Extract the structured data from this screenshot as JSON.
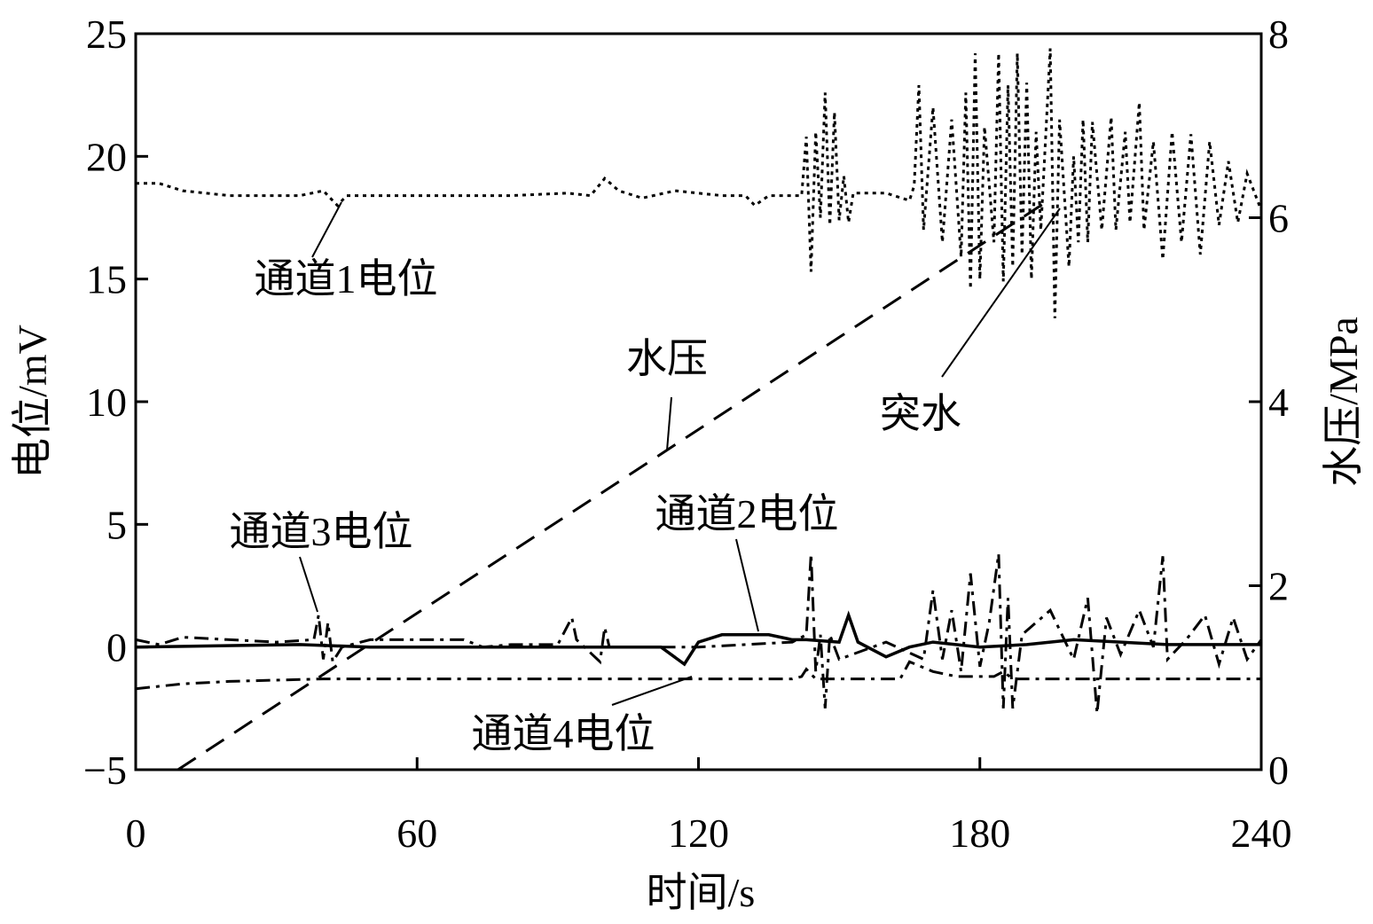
{
  "chart_data": {
    "type": "line",
    "xlabel": "时间/s",
    "ylabel": "电位/mV",
    "y2label": "水压/MPa",
    "xlim": [
      0,
      240
    ],
    "xticks": [
      0,
      60,
      120,
      180,
      240
    ],
    "ylim": [
      -5,
      25
    ],
    "yticks": [
      {
        "value": -5,
        "label": "−5"
      },
      0,
      5,
      10,
      15,
      20,
      25
    ],
    "y2lim": [
      0,
      8
    ],
    "y2ticks": [
      0,
      2,
      4,
      6,
      8
    ],
    "annotations": [
      {
        "text": "突水"
      }
    ],
    "series": [
      {
        "name": "通道1电位",
        "color": "#000000",
        "style": "dotted",
        "x": [
          0,
          5,
          10,
          20,
          35,
          40,
          43,
          45,
          60,
          80,
          92,
          97,
          100,
          103,
          108,
          115,
          125,
          130,
          132,
          135,
          142,
          143,
          144,
          145,
          146,
          147,
          148,
          149,
          150,
          151,
          152,
          153,
          160,
          165,
          166,
          167,
          168,
          170,
          172,
          174,
          176,
          177,
          178,
          179,
          180,
          181,
          183,
          184,
          185,
          186,
          187,
          188,
          189,
          190,
          191,
          192,
          193,
          195,
          196,
          197,
          199,
          200,
          201,
          202,
          203,
          204,
          206,
          208,
          209,
          211,
          212,
          214,
          215,
          217,
          219,
          221,
          223,
          225,
          227,
          229,
          231,
          233,
          235,
          237,
          240
        ],
        "values": [
          18.9,
          18.9,
          18.6,
          18.4,
          18.4,
          18.6,
          18.0,
          18.4,
          18.4,
          18.4,
          18.5,
          18.4,
          19.1,
          18.6,
          18.3,
          18.6,
          18.4,
          18.4,
          18.0,
          18.4,
          18.4,
          20.8,
          15.3,
          21.0,
          17.5,
          22.6,
          17.2,
          21.8,
          17.4,
          19.2,
          17.3,
          18.5,
          18.5,
          18.2,
          18.8,
          22.9,
          17.0,
          22.0,
          16.5,
          21.5,
          15.9,
          22.6,
          14.6,
          24.2,
          15.0,
          21.2,
          16.5,
          24.2,
          14.9,
          22.9,
          15.5,
          24.2,
          16.0,
          23.0,
          15.0,
          21.0,
          17.0,
          24.4,
          13.4,
          21.5,
          15.5,
          20.0,
          16.5,
          21.5,
          16.5,
          21.4,
          17.0,
          21.6,
          17.0,
          21.0,
          17.3,
          22.2,
          17.0,
          20.6,
          15.8,
          21.0,
          16.5,
          20.9,
          16.0,
          20.6,
          17.2,
          19.8,
          17.3,
          19.3,
          17.8
        ]
      },
      {
        "name": "通道2电位",
        "color": "#000000",
        "style": "solid",
        "x": [
          0,
          35,
          50,
          100,
          112,
          117,
          120,
          125,
          135,
          140,
          143,
          150,
          152,
          154,
          160,
          165,
          170,
          180,
          190,
          200,
          220,
          240
        ],
        "values": [
          0.0,
          0.1,
          0.0,
          0.0,
          0.0,
          -0.7,
          0.2,
          0.5,
          0.5,
          0.3,
          0.3,
          0.2,
          1.3,
          0.2,
          -0.4,
          0.0,
          0.2,
          0.0,
          0.1,
          0.3,
          0.1,
          0.1
        ]
      },
      {
        "name": "通道3电位",
        "color": "#000000",
        "style": "dashdot",
        "x": [
          0,
          5,
          10,
          20,
          30,
          38,
          39,
          40,
          41,
          42,
          44,
          50,
          70,
          74,
          80,
          90,
          93,
          94,
          99,
          100,
          101,
          120,
          140,
          143,
          144,
          145,
          146,
          147,
          148,
          150,
          160,
          168,
          170,
          172,
          174,
          176,
          178,
          180,
          182,
          184,
          185,
          186,
          187,
          189,
          195,
          200,
          203,
          205,
          207,
          210,
          214,
          217,
          219,
          220,
          224,
          228,
          231,
          234,
          237,
          240
        ],
        "values": [
          0.3,
          0.1,
          0.4,
          0.3,
          0.2,
          0.3,
          1.3,
          -0.5,
          1.0,
          -0.6,
          0.0,
          0.3,
          0.3,
          0.0,
          0.1,
          0.1,
          1.2,
          0.3,
          -0.6,
          0.8,
          0.0,
          0.0,
          0.2,
          0.5,
          3.8,
          -1.0,
          0.5,
          -2.5,
          0.5,
          -0.5,
          0.2,
          -0.5,
          2.3,
          -0.5,
          1.5,
          -1.0,
          3.0,
          -0.8,
          1.0,
          3.8,
          -2.5,
          2.0,
          -2.5,
          0.5,
          1.5,
          -0.5,
          2.0,
          -2.7,
          1.2,
          -0.3,
          1.5,
          0.0,
          3.7,
          -0.5,
          0.3,
          1.3,
          -0.7,
          1.2,
          -0.5,
          0.3
        ]
      },
      {
        "name": "通道4电位",
        "color": "#000000",
        "style": "dashdot",
        "x": [
          0,
          10,
          20,
          40,
          60,
          80,
          100,
          120,
          140,
          142,
          143,
          145,
          163,
          165,
          170,
          175,
          183,
          185,
          187,
          240
        ],
        "values": [
          -1.7,
          -1.5,
          -1.4,
          -1.3,
          -1.3,
          -1.3,
          -1.3,
          -1.3,
          -1.3,
          -1.2,
          -0.9,
          -1.3,
          -1.3,
          -0.6,
          -1.0,
          -1.2,
          -1.2,
          -1.0,
          -1.3,
          -1.3
        ]
      },
      {
        "name": "水压",
        "color": "#000000",
        "style": "dashed",
        "axis": "y2",
        "x": [
          9,
          50,
          100,
          150,
          186,
          195
        ],
        "values": [
          0,
          1.37,
          3.03,
          4.7,
          5.9,
          6.2
        ]
      }
    ]
  }
}
